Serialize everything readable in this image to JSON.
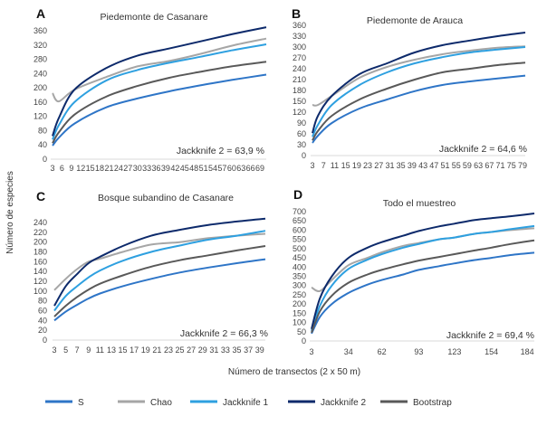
{
  "chart_data": [
    {
      "type": "line",
      "letter": "A",
      "title": "Piedemonte de Casanare",
      "annotation": "Jackknife 2 = 63,9 %",
      "ylim": [
        0,
        360
      ],
      "yticks": [
        0,
        40,
        80,
        120,
        160,
        200,
        240,
        280,
        320,
        360
      ],
      "xlim": [
        3,
        71
      ],
      "xticks": [
        3,
        6,
        9,
        12,
        15,
        18,
        21,
        24,
        27,
        30,
        33,
        36,
        39,
        42,
        45,
        48,
        51,
        54,
        57,
        60,
        63,
        66,
        69
      ],
      "xtick_gap": false,
      "x": [
        3,
        5,
        10,
        20,
        30,
        40,
        50,
        60,
        71
      ],
      "series": [
        {
          "name": "S",
          "values": [
            38,
            60,
            100,
            145,
            170,
            190,
            207,
            222,
            237
          ]
        },
        {
          "name": "Chao",
          "values": [
            185,
            162,
            195,
            230,
            260,
            275,
            295,
            318,
            338
          ]
        },
        {
          "name": "Jackknife 1",
          "values": [
            55,
            95,
            160,
            220,
            250,
            270,
            287,
            305,
            322
          ]
        },
        {
          "name": "Jackknife 2",
          "values": [
            65,
            115,
            195,
            255,
            290,
            310,
            330,
            350,
            370
          ]
        },
        {
          "name": "Bootstrap",
          "values": [
            45,
            75,
            125,
            175,
            205,
            228,
            245,
            260,
            273
          ]
        }
      ]
    },
    {
      "type": "line",
      "letter": "B",
      "title": "Piedemonte de Arauca",
      "annotation": "Jackknife 2 = 64,6 %",
      "ylim": [
        0,
        360
      ],
      "yticks": [
        0,
        30,
        60,
        90,
        120,
        150,
        180,
        210,
        240,
        270,
        300,
        330,
        360
      ],
      "xlim": [
        3,
        80
      ],
      "xticks": [
        3,
        7,
        11,
        15,
        19,
        23,
        27,
        31,
        35,
        39,
        43,
        47,
        51,
        55,
        59,
        63,
        67,
        71,
        75,
        79
      ],
      "x": [
        3,
        5,
        10,
        20,
        30,
        40,
        50,
        60,
        70,
        80
      ],
      "series": [
        {
          "name": "S",
          "values": [
            35,
            55,
            90,
            130,
            155,
            178,
            195,
            205,
            213,
            221
          ]
        },
        {
          "name": "Chao",
          "values": [
            140,
            140,
            165,
            215,
            245,
            265,
            280,
            290,
            298,
            302
          ]
        },
        {
          "name": "Jackknife 1",
          "values": [
            52,
            85,
            140,
            195,
            230,
            255,
            272,
            285,
            293,
            300
          ]
        },
        {
          "name": "Jackknife 2",
          "values": [
            62,
            110,
            165,
            225,
            255,
            285,
            305,
            318,
            330,
            340
          ]
        },
        {
          "name": "Bootstrap",
          "values": [
            42,
            68,
            110,
            155,
            185,
            210,
            230,
            240,
            250,
            257
          ]
        }
      ]
    },
    {
      "type": "line",
      "letter": "C",
      "title": "Bosque subandino de Casanare",
      "annotation": "Jackknife 2 = 66,3 %",
      "ylim": [
        0,
        240
      ],
      "yticks": [
        0,
        20,
        40,
        60,
        80,
        100,
        120,
        140,
        160,
        180,
        200,
        220,
        240
      ],
      "xlim": [
        3,
        40
      ],
      "xticks": [
        3,
        5,
        7,
        9,
        11,
        13,
        15,
        17,
        19,
        21,
        23,
        25,
        27,
        29,
        31,
        33,
        35,
        37,
        39
      ],
      "x": [
        3,
        5,
        7,
        9,
        11,
        15,
        20,
        25,
        30,
        35,
        40
      ],
      "series": [
        {
          "name": "S",
          "values": [
            40,
            58,
            72,
            85,
            95,
            110,
            125,
            138,
            148,
            157,
            165
          ]
        },
        {
          "name": "Chao",
          "values": [
            102,
            125,
            145,
            160,
            166,
            180,
            195,
            200,
            208,
            213,
            217
          ]
        },
        {
          "name": "Jackknife 1",
          "values": [
            60,
            90,
            110,
            128,
            142,
            162,
            180,
            193,
            205,
            213,
            223
          ]
        },
        {
          "name": "Jackknife 2",
          "values": [
            70,
            110,
            135,
            157,
            170,
            192,
            213,
            225,
            235,
            242,
            248
          ]
        },
        {
          "name": "Bootstrap",
          "values": [
            48,
            70,
            88,
            103,
            115,
            132,
            150,
            163,
            173,
            183,
            192
          ]
        }
      ]
    },
    {
      "type": "line",
      "letter": "D",
      "title": "Todo el muestreo",
      "annotation": "Jackknife 2 = 69,4 %",
      "ylim": [
        0,
        700
      ],
      "yticks": [
        0,
        50,
        100,
        150,
        200,
        250,
        300,
        350,
        400,
        450,
        500,
        550,
        600,
        650,
        700
      ],
      "xlim": [
        3,
        190
      ],
      "xticks": [
        3,
        34,
        62,
        93,
        123,
        154,
        184
      ],
      "x": [
        3,
        10,
        20,
        34,
        50,
        62,
        80,
        93,
        110,
        123,
        140,
        154,
        170,
        190
      ],
      "series": [
        {
          "name": "S",
          "values": [
            40,
            130,
            200,
            260,
            305,
            330,
            360,
            385,
            405,
            420,
            438,
            450,
            465,
            478
          ]
        },
        {
          "name": "Chao",
          "values": [
            290,
            270,
            330,
            410,
            450,
            480,
            515,
            530,
            550,
            560,
            580,
            590,
            600,
            610
          ]
        },
        {
          "name": "Jackknife 1",
          "values": [
            55,
            190,
            300,
            390,
            440,
            470,
            505,
            525,
            550,
            560,
            580,
            590,
            605,
            622
          ]
        },
        {
          "name": "Jackknife 2",
          "values": [
            65,
            230,
            350,
            450,
            505,
            535,
            570,
            595,
            620,
            635,
            655,
            665,
            675,
            690
          ]
        },
        {
          "name": "Bootstrap",
          "values": [
            45,
            160,
            245,
            315,
            360,
            385,
            415,
            435,
            455,
            470,
            490,
            505,
            525,
            545
          ]
        }
      ]
    }
  ],
  "ylabel": "Número de especies",
  "xlabel": "Número de transectos (2 x 50 m)",
  "legend": {
    "placement": "bottom",
    "items": [
      "S",
      "Chao",
      "Jackknife 1",
      "Jackknife 2",
      "Bootstrap"
    ]
  },
  "colors": {
    "S": "#2e75c7",
    "Chao": "#a6a6a6",
    "Jackknife 1": "#2ea0e0",
    "Jackknife 2": "#0d2a6b",
    "Bootstrap": "#595959"
  }
}
